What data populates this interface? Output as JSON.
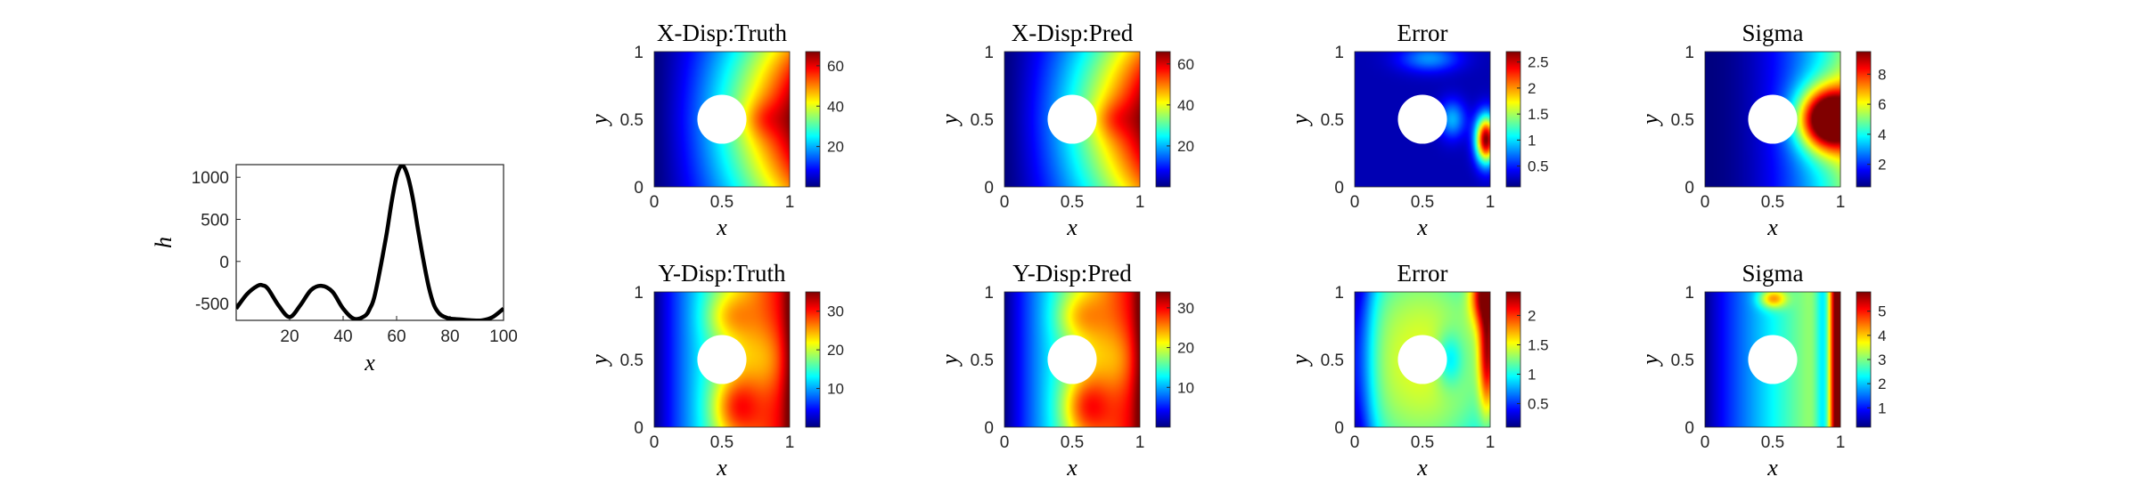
{
  "chart_data": [
    {
      "type": "line",
      "xlabel": "x",
      "ylabel": "h",
      "xlim": [
        0,
        100
      ],
      "ylim": [
        -700,
        1150
      ],
      "x_ticks": [
        "20",
        "40",
        "60",
        "80",
        "100"
      ],
      "y_ticks": [
        "1000",
        "500",
        "0",
        "-500"
      ],
      "grid": false,
      "series": [
        {
          "x": [
            0,
            4,
            8,
            10,
            12,
            16,
            20,
            24,
            28,
            32,
            36,
            40,
            44,
            48,
            50,
            52,
            56,
            58,
            60,
            62,
            64,
            66,
            68,
            70,
            72,
            74,
            76,
            78,
            80,
            84,
            88,
            92,
            96,
            100
          ],
          "values": [
            -560,
            -390,
            -290,
            -285,
            -330,
            -530,
            -660,
            -520,
            -340,
            -290,
            -360,
            -560,
            -680,
            -650,
            -560,
            -380,
            280,
            680,
            1010,
            1140,
            1030,
            760,
            380,
            20,
            -300,
            -520,
            -620,
            -660,
            -680,
            -690,
            -700,
            -700,
            -660,
            -560
          ]
        }
      ]
    },
    {
      "type": "heatmap",
      "title": "X-Disp:Truth",
      "xlabel": "x",
      "ylabel": "y",
      "x_ticks": [
        "0",
        "0.5",
        "1"
      ],
      "y_ticks": [
        "0",
        "0.5",
        "1"
      ],
      "colorbar_ticks": [
        "60",
        "40",
        "20"
      ],
      "colorbar_range": [
        0,
        67
      ],
      "colormap": "jet",
      "hole": {
        "center": [
          0.5,
          0.5
        ],
        "radius": 0.25
      },
      "field": "x-displacement"
    },
    {
      "type": "heatmap",
      "title": "X-Disp:Pred",
      "xlabel": "x",
      "ylabel": "y",
      "x_ticks": [
        "0",
        "0.5",
        "1"
      ],
      "y_ticks": [
        "0",
        "0.5",
        "1"
      ],
      "colorbar_ticks": [
        "60",
        "40",
        "20"
      ],
      "colorbar_range": [
        0,
        66
      ],
      "colormap": "jet",
      "hole": {
        "center": [
          0.5,
          0.5
        ],
        "radius": 0.25
      },
      "field": "x-displacement"
    },
    {
      "type": "heatmap",
      "title": "Error",
      "xlabel": "x",
      "ylabel": "y",
      "x_ticks": [
        "0",
        "0.5",
        "1"
      ],
      "y_ticks": [
        "0",
        "0.5",
        "1"
      ],
      "colorbar_ticks": [
        "2.5",
        "2",
        "1.5",
        "1",
        "0.5"
      ],
      "colorbar_range": [
        0.1,
        2.7
      ],
      "colormap": "jet",
      "hole": {
        "center": [
          0.5,
          0.5
        ],
        "radius": 0.25
      },
      "field": "x-error"
    },
    {
      "type": "heatmap",
      "title": "Sigma",
      "xlabel": "x",
      "ylabel": "y",
      "x_ticks": [
        "0",
        "0.5",
        "1"
      ],
      "y_ticks": [
        "0",
        "0.5",
        "1"
      ],
      "colorbar_ticks": [
        "8",
        "6",
        "4",
        "2"
      ],
      "colorbar_range": [
        0.5,
        9.5
      ],
      "colormap": "jet",
      "hole": {
        "center": [
          0.5,
          0.5
        ],
        "radius": 0.25
      },
      "field": "x-sigma"
    },
    {
      "type": "heatmap",
      "title": "Y-Disp:Truth",
      "xlabel": "x",
      "ylabel": "y",
      "x_ticks": [
        "0",
        "0.5",
        "1"
      ],
      "y_ticks": [
        "0",
        "0.5",
        "1"
      ],
      "colorbar_ticks": [
        "30",
        "20",
        "10"
      ],
      "colorbar_range": [
        0,
        35
      ],
      "colormap": "jet",
      "hole": {
        "center": [
          0.5,
          0.5
        ],
        "radius": 0.25
      },
      "field": "y-displacement"
    },
    {
      "type": "heatmap",
      "title": "Y-Disp:Pred",
      "xlabel": "x",
      "ylabel": "y",
      "x_ticks": [
        "0",
        "0.5",
        "1"
      ],
      "y_ticks": [
        "0",
        "0.5",
        "1"
      ],
      "colorbar_ticks": [
        "30",
        "20",
        "10"
      ],
      "colorbar_range": [
        0,
        34
      ],
      "colormap": "jet",
      "hole": {
        "center": [
          0.5,
          0.5
        ],
        "radius": 0.25
      },
      "field": "y-displacement"
    },
    {
      "type": "heatmap",
      "title": "Error",
      "xlabel": "x",
      "ylabel": "y",
      "x_ticks": [
        "0",
        "0.5",
        "1"
      ],
      "y_ticks": [
        "0",
        "0.5",
        "1"
      ],
      "colorbar_ticks": [
        "2",
        "1.5",
        "1",
        "0.5"
      ],
      "colorbar_range": [
        0.1,
        2.4
      ],
      "colormap": "jet",
      "hole": {
        "center": [
          0.5,
          0.5
        ],
        "radius": 0.25
      },
      "field": "y-error"
    },
    {
      "type": "heatmap",
      "title": "Sigma",
      "xlabel": "x",
      "ylabel": "y",
      "x_ticks": [
        "0",
        "0.5",
        "1"
      ],
      "y_ticks": [
        "0",
        "0.5",
        "1"
      ],
      "colorbar_ticks": [
        "5",
        "4",
        "3",
        "2",
        "1"
      ],
      "colorbar_range": [
        0.2,
        5.8
      ],
      "colormap": "jet",
      "hole": {
        "center": [
          0.5,
          0.5
        ],
        "radius": 0.25
      },
      "field": "y-sigma"
    }
  ]
}
